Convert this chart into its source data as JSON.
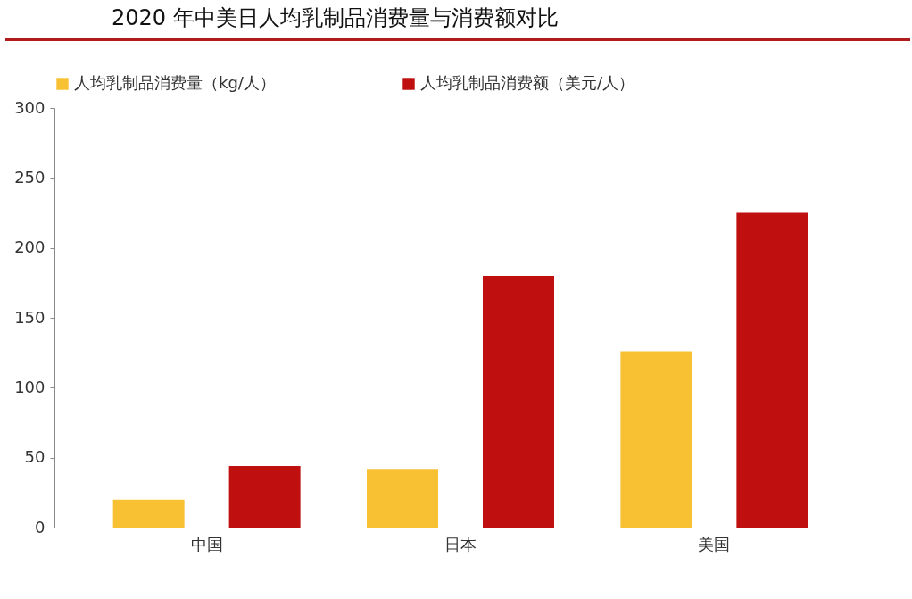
{
  "chart_data": {
    "type": "bar",
    "title": "2020 年中美日人均乳制品消费量与消费额对比",
    "categories": [
      "中国",
      "日本",
      "美国"
    ],
    "series": [
      {
        "name": "人均乳制品消费量（kg/人）",
        "color": "#f8c133",
        "values": [
          20,
          42,
          126
        ]
      },
      {
        "name": "人均乳制品消费额（美元/人）",
        "color": "#c00f0f",
        "values": [
          44,
          180,
          225
        ]
      }
    ],
    "ylim": [
      0,
      300
    ],
    "yticks": [
      0,
      50,
      100,
      150,
      200,
      250,
      300
    ],
    "grid": false,
    "legend": "top"
  }
}
